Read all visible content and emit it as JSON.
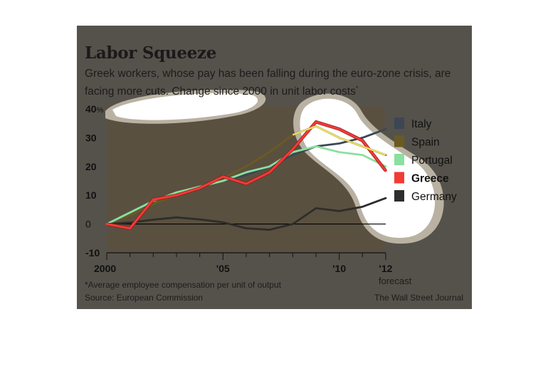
{
  "header": {
    "title": "Labor Squeeze",
    "subtitle": "Greek workers, whose pay has been falling during the euro-zone crisis, are facing more cuts. Change since 2000 in unit labor costs",
    "subtitle_marker": "*"
  },
  "footer": {
    "footnote": "*Average employee compensation per unit of output",
    "source": "Source: European Commission",
    "credit": "The Wall Street Journal"
  },
  "chart_data": {
    "type": "line",
    "title": "Labor Squeeze",
    "x": [
      2000,
      2001,
      2002,
      2003,
      2004,
      2005,
      2006,
      2007,
      2008,
      2009,
      2010,
      2011,
      2012
    ],
    "x_tick_labels": [
      {
        "value": 2000,
        "label": "2000"
      },
      {
        "value": 2005,
        "label": "'05"
      },
      {
        "value": 2010,
        "label": "'10"
      },
      {
        "value": 2012,
        "label": "'12"
      }
    ],
    "forecast_label": "forecast",
    "forecast_from": 2011,
    "y_ticks": [
      {
        "value": 40,
        "label": "40%"
      },
      {
        "value": 30,
        "label": "30"
      },
      {
        "value": 20,
        "label": "20"
      },
      {
        "value": 10,
        "label": "10"
      },
      {
        "value": 0,
        "label": "0"
      },
      {
        "value": -10,
        "label": "-10"
      }
    ],
    "ylim": [
      -10,
      40
    ],
    "xlim": [
      2000,
      2012
    ],
    "legend_position": "right",
    "series": [
      {
        "name": "Italy",
        "color": "#3d4654",
        "values": [
          0,
          3,
          7,
          10,
          13,
          15,
          17,
          20,
          24,
          27,
          28,
          30,
          33
        ]
      },
      {
        "name": "Spain",
        "color": "#6b5a22",
        "values": [
          0,
          3,
          7,
          10,
          13,
          16,
          20,
          25,
          31,
          34,
          30,
          27,
          24
        ]
      },
      {
        "name": "Portugal",
        "color": "#8ae0a0",
        "values": [
          0,
          4,
          8,
          11,
          13,
          15,
          18,
          20,
          25,
          27,
          25,
          24,
          20
        ]
      },
      {
        "name": "Greece",
        "color": "#f23a37",
        "values": [
          0,
          -1.5,
          8.5,
          10,
          12.5,
          16.5,
          14,
          18,
          26,
          35.5,
          33,
          29,
          18.5
        ]
      },
      {
        "name": "Germany",
        "color": "#2e2d2b",
        "values": [
          0,
          0.5,
          1.5,
          2.3,
          1.6,
          0.6,
          -1.5,
          -2,
          0,
          5.5,
          4.5,
          6,
          9
        ]
      }
    ]
  }
}
